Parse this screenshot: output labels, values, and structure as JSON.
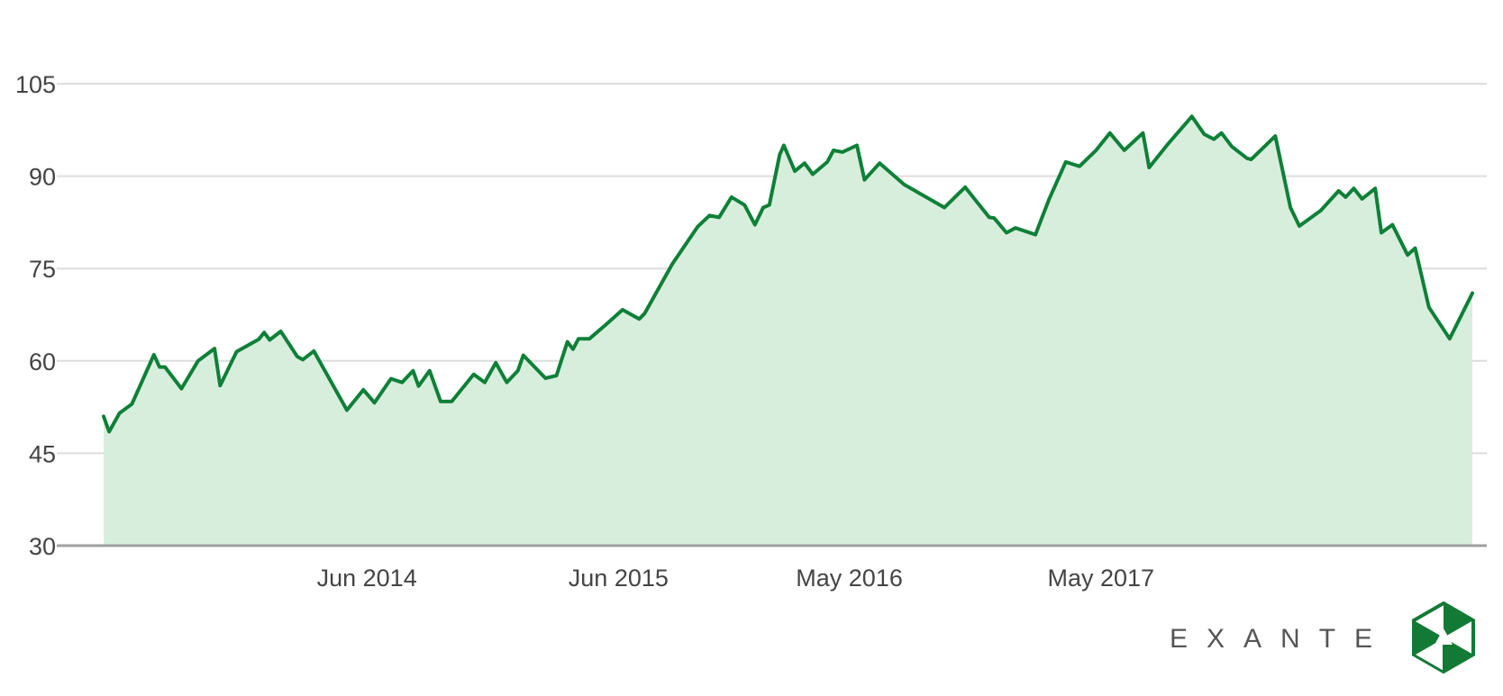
{
  "chart_data": {
    "type": "area",
    "title": "",
    "xlabel": "",
    "ylabel": "",
    "ylim": [
      30,
      105
    ],
    "y_ticks": [
      30,
      45,
      60,
      75,
      90,
      105
    ],
    "x_ticks": [
      {
        "label": "Jun 2014",
        "date": "2014-06-01"
      },
      {
        "label": "Jun 2015",
        "date": "2015-06-01"
      },
      {
        "label": "May 2016",
        "date": "2016-05-01"
      },
      {
        "label": "May 2017",
        "date": "2017-05-01"
      }
    ],
    "xlim": [
      "2013-05-15",
      "2018-10-22"
    ],
    "grid": true,
    "legend": "none",
    "colors": {
      "line": "#0e8038",
      "fill": "#d8eedc",
      "grid": "#dddddd",
      "axis": "#a0a0a0",
      "text": "#444444"
    },
    "series": [
      {
        "values": [
          [
            "2013-05-15",
            51
          ],
          [
            "2013-05-23",
            48.5
          ],
          [
            "2013-06-07",
            51.5
          ],
          [
            "2013-06-25",
            53
          ],
          [
            "2013-07-27",
            61
          ],
          [
            "2013-08-04",
            59
          ],
          [
            "2013-08-12",
            59
          ],
          [
            "2013-09-05",
            55.5
          ],
          [
            "2013-09-29",
            60
          ],
          [
            "2013-10-23",
            62
          ],
          [
            "2013-10-31",
            56
          ],
          [
            "2013-11-24",
            61.5
          ],
          [
            "2013-12-26",
            63.5
          ],
          [
            "2014-01-03",
            64.6
          ],
          [
            "2014-01-11",
            63.4
          ],
          [
            "2014-01-27",
            64.8
          ],
          [
            "2014-02-20",
            60.7
          ],
          [
            "2014-02-28",
            60.2
          ],
          [
            "2014-03-16",
            61.6
          ],
          [
            "2014-05-03",
            52
          ],
          [
            "2014-05-27",
            55.3
          ],
          [
            "2014-06-12",
            53.2
          ],
          [
            "2014-07-06",
            57.1
          ],
          [
            "2014-07-22",
            56.5
          ],
          [
            "2014-08-07",
            58.4
          ],
          [
            "2014-08-15",
            55.9
          ],
          [
            "2014-08-31",
            58.4
          ],
          [
            "2014-09-16",
            53.4
          ],
          [
            "2014-10-02",
            53.4
          ],
          [
            "2014-11-03",
            57.8
          ],
          [
            "2014-11-19",
            56.5
          ],
          [
            "2014-12-05",
            59.7
          ],
          [
            "2014-12-21",
            56.5
          ],
          [
            "2015-01-06",
            58.4
          ],
          [
            "2015-01-14",
            60.9
          ],
          [
            "2015-02-15",
            57.2
          ],
          [
            "2015-03-03",
            57.6
          ],
          [
            "2015-03-19",
            63.1
          ],
          [
            "2015-03-27",
            61.9
          ],
          [
            "2015-04-04",
            63.6
          ],
          [
            "2015-04-20",
            63.6
          ],
          [
            "2015-05-14",
            65.9
          ],
          [
            "2015-06-07",
            68.3
          ],
          [
            "2015-07-01",
            66.8
          ],
          [
            "2015-07-09",
            67.7
          ],
          [
            "2015-08-18",
            75.7
          ],
          [
            "2015-09-24",
            81.8
          ],
          [
            "2015-10-11",
            83.6
          ],
          [
            "2015-10-25",
            83.3
          ],
          [
            "2015-11-12",
            86.6
          ],
          [
            "2015-12-01",
            85.3
          ],
          [
            "2015-12-16",
            82.1
          ],
          [
            "2015-12-28",
            84.9
          ],
          [
            "2016-01-06",
            85.3
          ],
          [
            "2016-01-21",
            93.5
          ],
          [
            "2016-01-27",
            95
          ],
          [
            "2016-02-12",
            90.8
          ],
          [
            "2016-02-26",
            92.1
          ],
          [
            "2016-03-09",
            90.3
          ],
          [
            "2016-03-30",
            92.3
          ],
          [
            "2016-04-08",
            94.2
          ],
          [
            "2016-04-21",
            93.9
          ],
          [
            "2016-05-12",
            95
          ],
          [
            "2016-05-23",
            89.4
          ],
          [
            "2016-06-14",
            92.1
          ],
          [
            "2016-07-20",
            88.6
          ],
          [
            "2016-09-16",
            84.9
          ],
          [
            "2016-10-06",
            87.1
          ],
          [
            "2016-10-16",
            88.2
          ],
          [
            "2016-11-20",
            83.3
          ],
          [
            "2016-11-27",
            83.2
          ],
          [
            "2016-12-15",
            80.8
          ],
          [
            "2016-12-28",
            81.6
          ],
          [
            "2017-01-26",
            80.5
          ],
          [
            "2017-02-15",
            86.3
          ],
          [
            "2017-03-11",
            92.3
          ],
          [
            "2017-03-31",
            91.6
          ],
          [
            "2017-04-24",
            94.2
          ],
          [
            "2017-05-14",
            97
          ],
          [
            "2017-06-04",
            94.2
          ],
          [
            "2017-07-01",
            97
          ],
          [
            "2017-07-10",
            91.4
          ],
          [
            "2017-08-07",
            95.3
          ],
          [
            "2017-09-10",
            99.7
          ],
          [
            "2017-09-28",
            96.8
          ],
          [
            "2017-10-12",
            96
          ],
          [
            "2017-10-23",
            97
          ],
          [
            "2017-11-07",
            94.8
          ],
          [
            "2017-11-29",
            92.9
          ],
          [
            "2017-12-05",
            92.7
          ],
          [
            "2018-01-09",
            96.5
          ],
          [
            "2018-01-31",
            84.9
          ],
          [
            "2018-02-13",
            81.9
          ],
          [
            "2018-03-16",
            84.4
          ],
          [
            "2018-04-11",
            87.6
          ],
          [
            "2018-04-21",
            86.6
          ],
          [
            "2018-05-03",
            88
          ],
          [
            "2018-05-15",
            86.3
          ],
          [
            "2018-06-03",
            88
          ],
          [
            "2018-06-12",
            80.8
          ],
          [
            "2018-06-28",
            82.1
          ],
          [
            "2018-07-20",
            77.2
          ],
          [
            "2018-07-31",
            78.3
          ],
          [
            "2018-08-20",
            68.7
          ],
          [
            "2018-09-19",
            63.6
          ],
          [
            "2018-10-22",
            71
          ]
        ]
      }
    ]
  },
  "brand": {
    "name": "EXANTE"
  }
}
